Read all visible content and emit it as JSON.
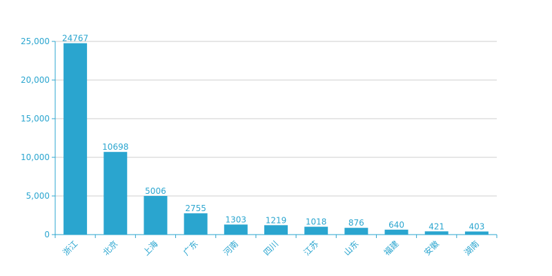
{
  "chart_data": {
    "type": "bar",
    "title": "",
    "xlabel": "",
    "ylabel": "",
    "categories": [
      "浙江",
      "北京",
      "上海",
      "广东",
      "河南",
      "四川",
      "江苏",
      "山东",
      "福建",
      "安徽",
      "湖南"
    ],
    "values": [
      24767,
      10698,
      5006,
      2755,
      1303,
      1219,
      1018,
      876,
      640,
      421,
      403
    ],
    "value_labels": [
      "24767",
      "10698",
      "5006",
      "2755",
      "1303",
      "1219",
      "1018",
      "876",
      "640",
      "421",
      "403"
    ],
    "ylim": [
      0,
      25000
    ],
    "yticks": [
      0,
      5000,
      10000,
      15000,
      20000,
      25000
    ],
    "ytick_labels": [
      "0",
      "5,000",
      "10,000",
      "15,000",
      "20,000",
      "25,000"
    ],
    "grid": true,
    "legend": "none",
    "colors": {
      "bar": "#2aa5cf",
      "axis": "#2aa5cf",
      "text": "#2aa5cf",
      "grid": "#cccccc"
    }
  }
}
